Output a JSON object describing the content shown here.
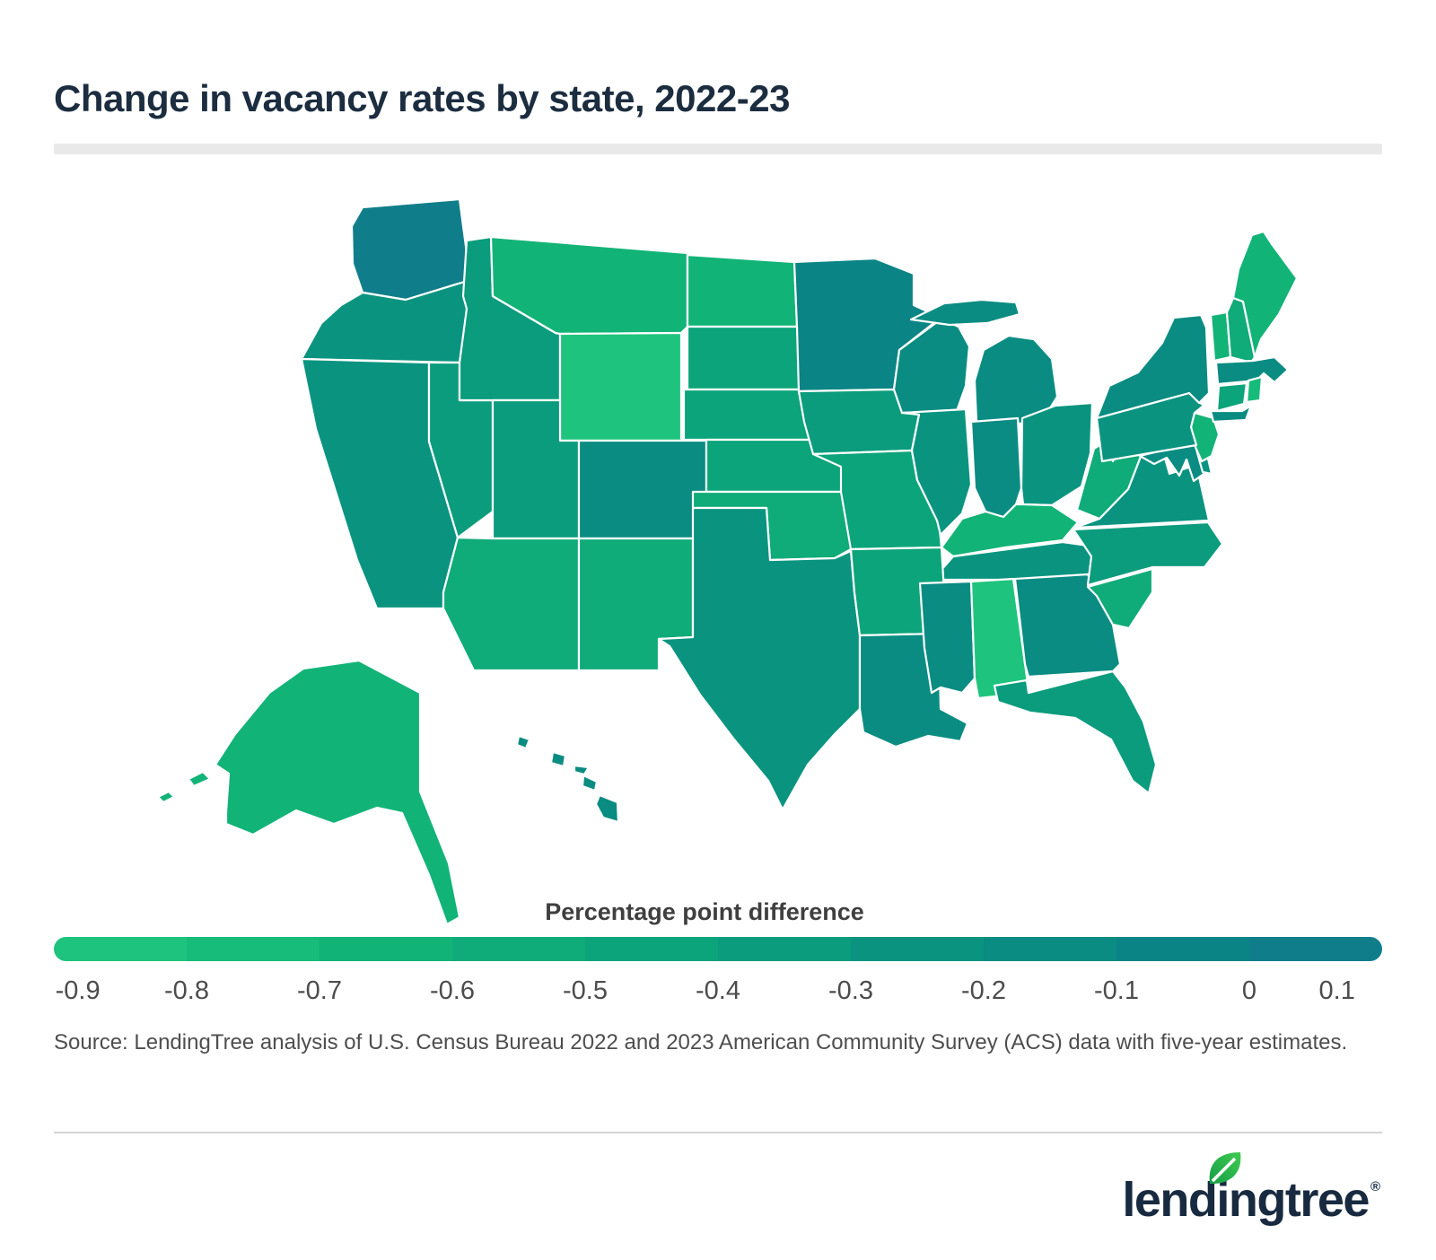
{
  "title": "Change in vacancy rates by state, 2022-23",
  "legend": {
    "label": "Percentage point difference",
    "ticks": [
      "-0.9",
      "-0.8",
      "-0.7",
      "-0.6",
      "-0.5",
      "-0.4",
      "-0.3",
      "-0.2",
      "-0.1",
      "0",
      "0.1"
    ],
    "colors": [
      "#1ec47d",
      "#17bb7a",
      "#12b377",
      "#0fab78",
      "#0ca47a",
      "#0b9c7d",
      "#0a9480",
      "#0a8c82",
      "#0b8485",
      "#107e8a"
    ],
    "band_ranges": [
      [
        -0.9,
        -0.8
      ],
      [
        -0.8,
        -0.7
      ],
      [
        -0.7,
        -0.6
      ],
      [
        -0.6,
        -0.5
      ],
      [
        -0.5,
        -0.4
      ],
      [
        -0.4,
        -0.3
      ],
      [
        -0.3,
        -0.2
      ],
      [
        -0.2,
        -0.1
      ],
      [
        -0.1,
        0
      ],
      [
        0,
        0.1
      ]
    ]
  },
  "source": "Source: LendingTree analysis of U.S. Census Bureau 2022 and 2023 American Community Survey (ACS) data with five-year estimates.",
  "logo": {
    "text": "lendingtree",
    "registered": "®",
    "leaf_color_dark": "#169e46",
    "leaf_color_light": "#3ecb51",
    "word_color": "#182a40"
  },
  "colors": {
    "title_text": "#1c2d40",
    "divider": "#e9e9e9",
    "footer_rule": "#d5d5d5",
    "map_border": "#ffffff",
    "background": "#ffffff"
  },
  "chart_data": {
    "type": "choropleth",
    "title": "Change in vacancy rates by state, 2022-23",
    "colorbar_label": "Percentage point difference",
    "colorbar_range": [
      -0.9,
      0.1
    ],
    "note": "State values are not labeled on the map; each state's color band (1 = brightest green = -0.9 to -0.8, 10 = darkest teal = 0 to 0.1) is estimated from the legend.",
    "states": [
      {
        "id": "WA",
        "name": "Washington",
        "band": 10
      },
      {
        "id": "OR",
        "name": "Oregon",
        "band": 7
      },
      {
        "id": "CA",
        "name": "California",
        "band": 7
      },
      {
        "id": "NV",
        "name": "Nevada",
        "band": 6
      },
      {
        "id": "ID",
        "name": "Idaho",
        "band": 6
      },
      {
        "id": "MT",
        "name": "Montana",
        "band": 3
      },
      {
        "id": "WY",
        "name": "Wyoming",
        "band": 1
      },
      {
        "id": "UT",
        "name": "Utah",
        "band": 6
      },
      {
        "id": "CO",
        "name": "Colorado",
        "band": 8
      },
      {
        "id": "AZ",
        "name": "Arizona",
        "band": 4
      },
      {
        "id": "NM",
        "name": "New Mexico",
        "band": 4
      },
      {
        "id": "ND",
        "name": "North Dakota",
        "band": 3
      },
      {
        "id": "SD",
        "name": "South Dakota",
        "band": 5
      },
      {
        "id": "NE",
        "name": "Nebraska",
        "band": 5
      },
      {
        "id": "KS",
        "name": "Kansas",
        "band": 5
      },
      {
        "id": "OK",
        "name": "Oklahoma",
        "band": 4
      },
      {
        "id": "TX",
        "name": "Texas",
        "band": 7
      },
      {
        "id": "MN",
        "name": "Minnesota",
        "band": 9
      },
      {
        "id": "IA",
        "name": "Iowa",
        "band": 6
      },
      {
        "id": "MO",
        "name": "Missouri",
        "band": 5
      },
      {
        "id": "WI",
        "name": "Wisconsin",
        "band": 8
      },
      {
        "id": "IL",
        "name": "Illinois",
        "band": 7
      },
      {
        "id": "MI",
        "name": "Michigan",
        "band": 8
      },
      {
        "id": "IN",
        "name": "Indiana",
        "band": 8
      },
      {
        "id": "OH",
        "name": "Ohio",
        "band": 7
      },
      {
        "id": "KY",
        "name": "Kentucky",
        "band": 3
      },
      {
        "id": "TN",
        "name": "Tennessee",
        "band": 7
      },
      {
        "id": "AR",
        "name": "Arkansas",
        "band": 5
      },
      {
        "id": "LA",
        "name": "Louisiana",
        "band": 8
      },
      {
        "id": "MS",
        "name": "Mississippi",
        "band": 8
      },
      {
        "id": "AL",
        "name": "Alabama",
        "band": 1
      },
      {
        "id": "GA",
        "name": "Georgia",
        "band": 8
      },
      {
        "id": "FL",
        "name": "Florida",
        "band": 6
      },
      {
        "id": "SC",
        "name": "South Carolina",
        "band": 4
      },
      {
        "id": "NC",
        "name": "North Carolina",
        "band": 6
      },
      {
        "id": "VA",
        "name": "Virginia",
        "band": 7
      },
      {
        "id": "WV",
        "name": "West Virginia",
        "band": 4
      },
      {
        "id": "MD",
        "name": "Maryland",
        "band": 8
      },
      {
        "id": "DE",
        "name": "Delaware",
        "band": 7
      },
      {
        "id": "NJ",
        "name": "New Jersey",
        "band": 3
      },
      {
        "id": "PA",
        "name": "Pennsylvania",
        "band": 7
      },
      {
        "id": "NY",
        "name": "New York",
        "band": 8
      },
      {
        "id": "CT",
        "name": "Connecticut",
        "band": 5
      },
      {
        "id": "RI",
        "name": "Rhode Island",
        "band": 2
      },
      {
        "id": "MA",
        "name": "Massachusetts",
        "band": 8
      },
      {
        "id": "VT",
        "name": "Vermont",
        "band": 3
      },
      {
        "id": "NH",
        "name": "New Hampshire",
        "band": 4
      },
      {
        "id": "ME",
        "name": "Maine",
        "band": 3
      },
      {
        "id": "AK",
        "name": "Alaska",
        "band": 3
      },
      {
        "id": "HI",
        "name": "Hawaii",
        "band": 8
      }
    ]
  }
}
